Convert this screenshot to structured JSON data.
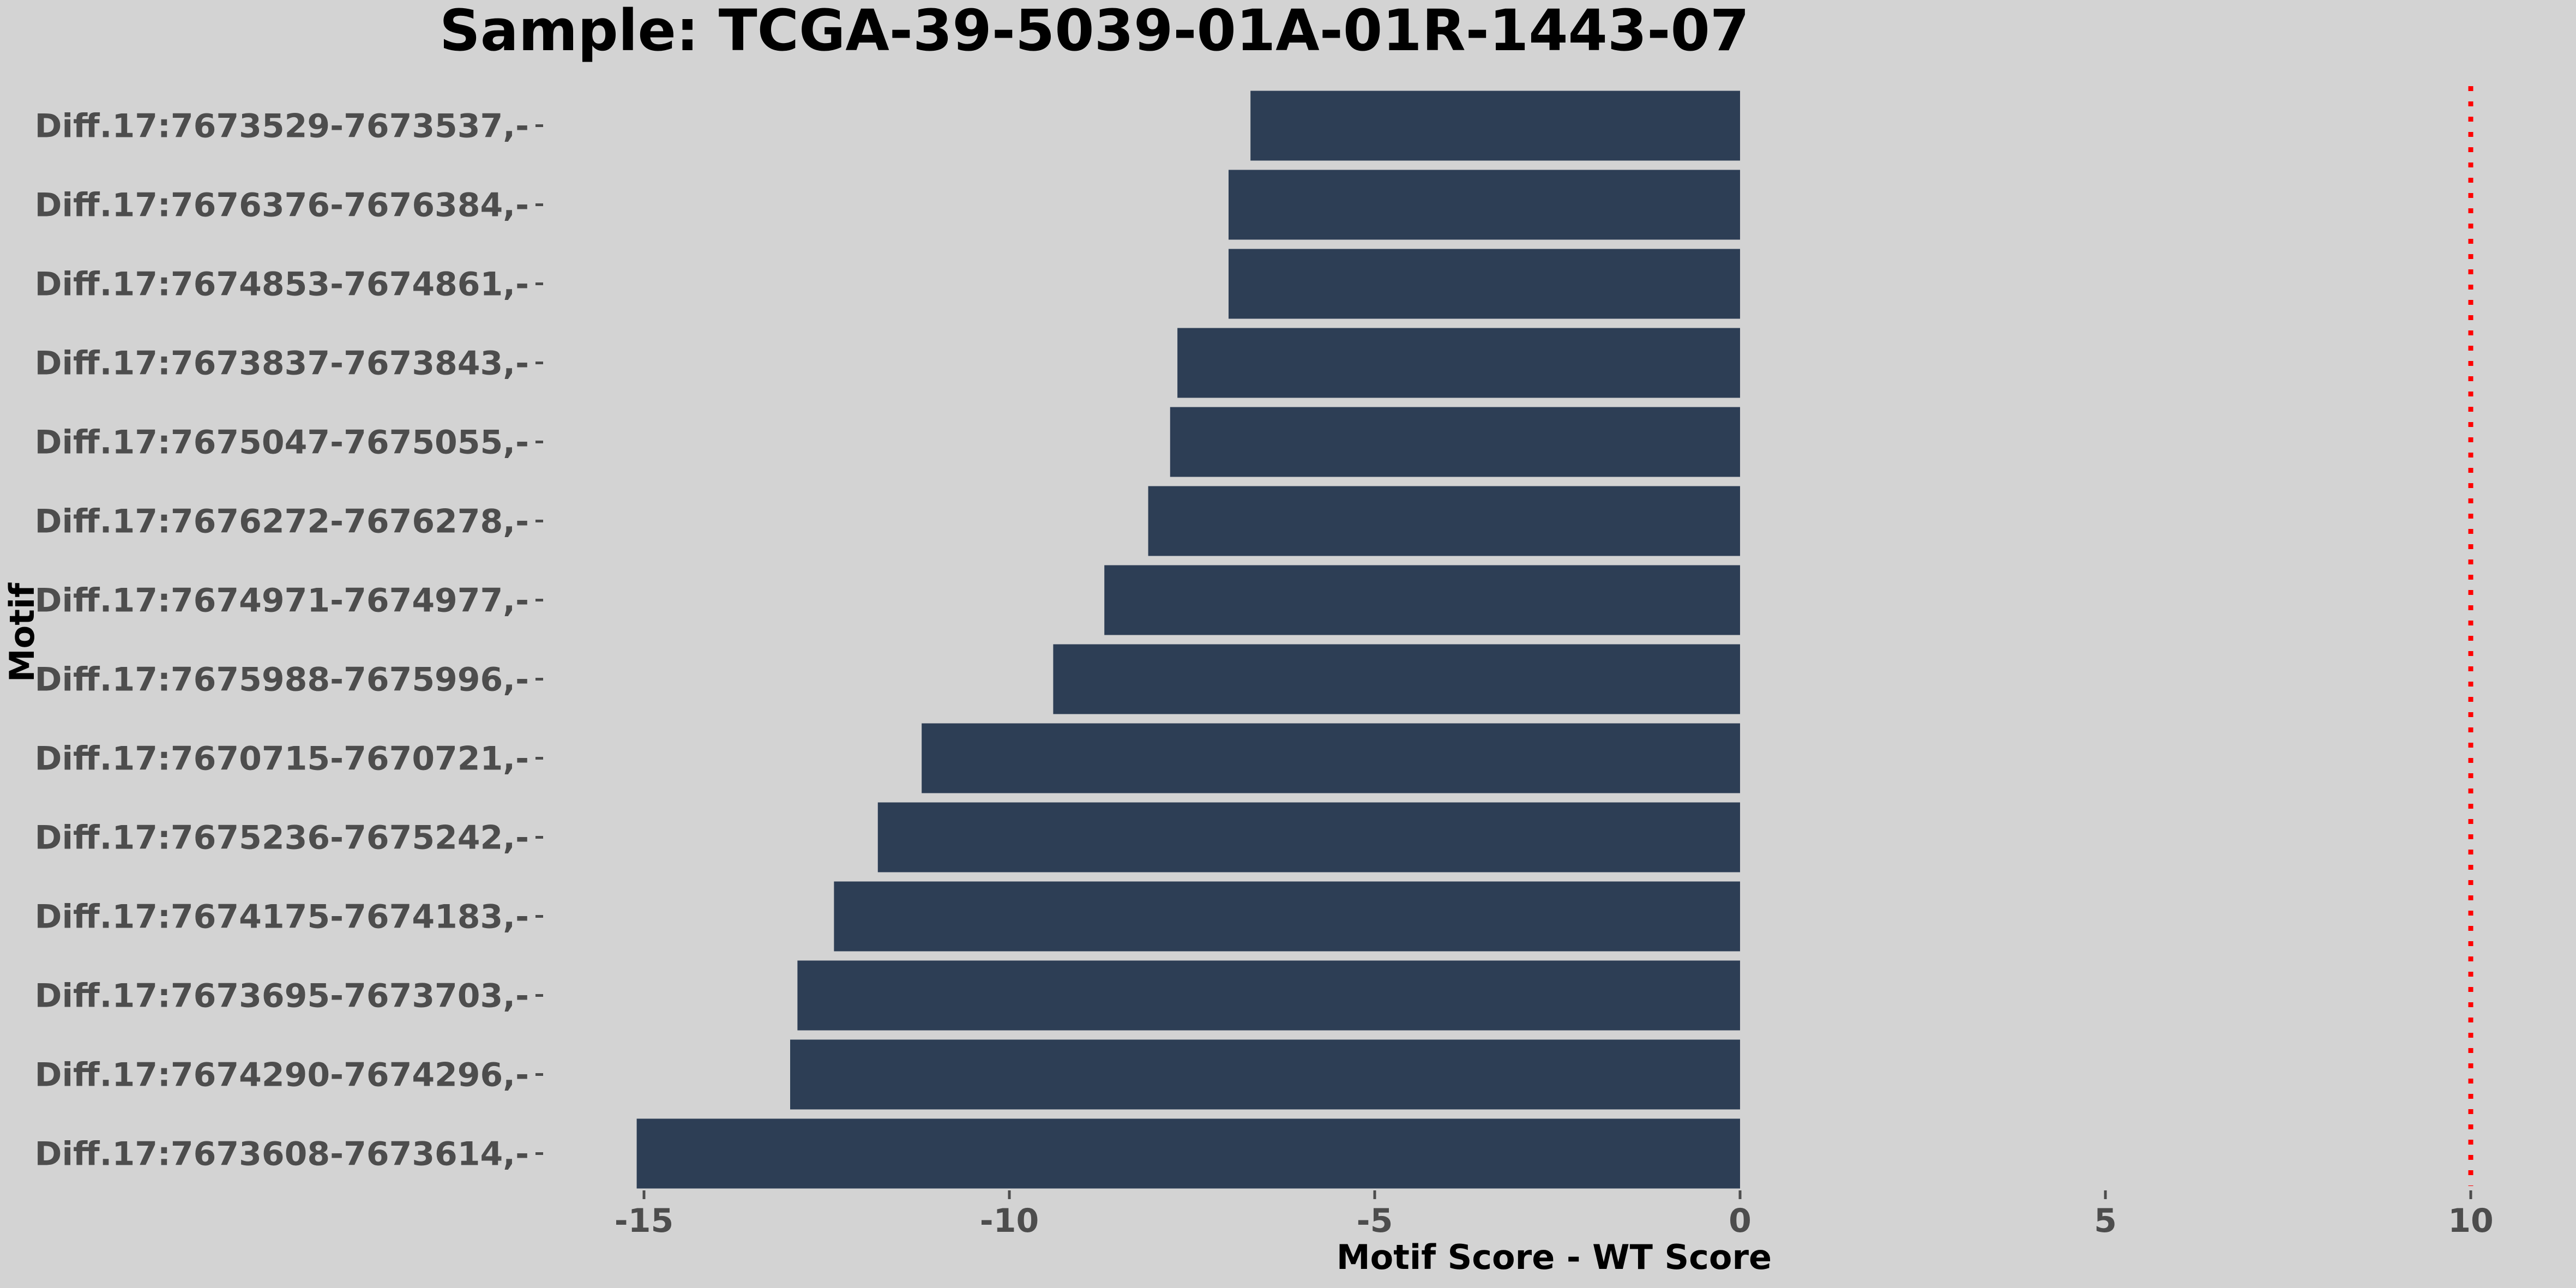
{
  "chart_data": {
    "type": "bar",
    "orientation": "horizontal",
    "title": "Sample: TCGA-39-5039-01A-01R-1443-07",
    "xlabel": "Motif Score - WT Score",
    "ylabel": "Motif",
    "xlim": [
      -15.6,
      11.5
    ],
    "x_ticks": [
      -15,
      -10,
      -5,
      0,
      5,
      10
    ],
    "x_tick_labels": [
      "-15",
      "-10",
      "-5",
      "0",
      "5",
      "10"
    ],
    "reference_line": {
      "x": 10,
      "color": "#ff0000",
      "style": "dotted"
    },
    "bar_color": "#2d3e55",
    "background_color": "#d3d3d3",
    "grid": false,
    "legend": "none",
    "categories": [
      "Diff.17:7673529-7673537,-",
      "Diff.17:7676376-7676384,-",
      "Diff.17:7674853-7674861,-",
      "Diff.17:7673837-7673843,-",
      "Diff.17:7675047-7675055,-",
      "Diff.17:7676272-7676278,-",
      "Diff.17:7674971-7674977,-",
      "Diff.17:7675988-7675996,-",
      "Diff.17:7670715-7670721,-",
      "Diff.17:7675236-7675242,-",
      "Diff.17:7674175-7674183,-",
      "Diff.17:7673695-7673703,-",
      "Diff.17:7674290-7674296,-",
      "Diff.17:7673608-7673614,-"
    ],
    "values": [
      -6.7,
      -7.0,
      -7.0,
      -7.7,
      -7.8,
      -8.1,
      -8.7,
      -9.4,
      -11.2,
      -11.8,
      -12.4,
      -12.9,
      -13.0,
      -15.1
    ]
  }
}
